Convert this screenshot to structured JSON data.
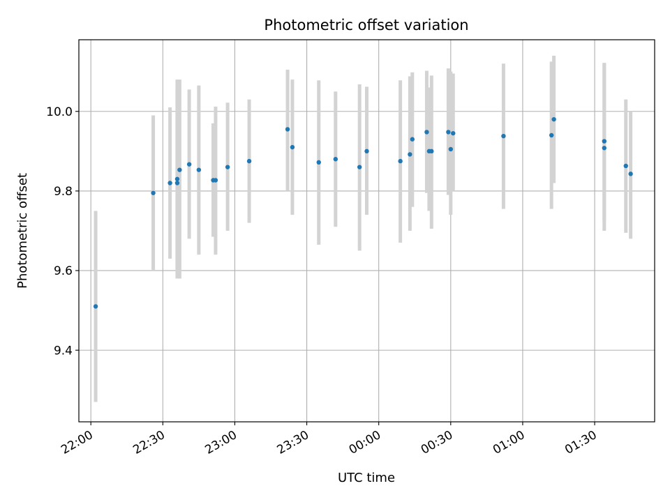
{
  "chart_data": {
    "type": "scatter",
    "title": "Photometric offset variation",
    "xlabel": "UTC time",
    "ylabel": "Photometric offset",
    "xlim": [
      "21:55",
      "01:55"
    ],
    "ylim": [
      9.22,
      10.18
    ],
    "grid": true,
    "x_ticks": [
      "22:00",
      "22:30",
      "23:00",
      "23:30",
      "00:00",
      "00:30",
      "01:00",
      "01:30"
    ],
    "y_ticks": [
      "9.4",
      "9.6",
      "9.8",
      "10.0"
    ],
    "colors": {
      "point": "#1f77b4",
      "errorbar": "#d3d3d3",
      "grid": "#b0b0b0"
    },
    "series": [
      {
        "x": [
          "22:02",
          "22:26",
          "22:33",
          "22:36",
          "22:36",
          "22:37",
          "22:41",
          "22:45",
          "22:51",
          "22:52",
          "22:57",
          "23:06",
          "23:22",
          "23:24",
          "23:35",
          "23:42",
          "23:52",
          "23:55",
          "00:09",
          "00:13",
          "00:14",
          "00:20",
          "00:21",
          "00:22",
          "00:29",
          "00:30",
          "00:31",
          "00:52",
          "01:12",
          "01:13",
          "01:34",
          "01:34",
          "01:43",
          "01:45"
        ],
        "y": [
          9.51,
          9.795,
          9.82,
          9.82,
          9.83,
          9.853,
          9.867,
          9.853,
          9.827,
          9.827,
          9.86,
          9.875,
          9.955,
          9.91,
          9.872,
          9.88,
          9.86,
          9.9,
          9.875,
          9.892,
          9.93,
          9.948,
          9.9,
          9.9,
          9.948,
          9.905,
          9.945,
          9.938,
          9.94,
          9.98,
          9.908,
          9.925,
          9.863,
          9.843
        ],
        "yerr_low": [
          9.27,
          9.6,
          9.63,
          9.6,
          9.58,
          9.58,
          9.68,
          9.64,
          9.685,
          9.64,
          9.7,
          9.72,
          9.8,
          9.74,
          9.665,
          9.71,
          9.65,
          9.74,
          9.67,
          9.7,
          9.76,
          9.795,
          9.75,
          9.705,
          9.79,
          9.74,
          9.8,
          9.755,
          9.755,
          9.82,
          9.7,
          9.725,
          9.695,
          9.68
        ],
        "yerr_high": [
          9.75,
          9.99,
          10.01,
          10.06,
          10.08,
          10.08,
          10.055,
          10.065,
          9.97,
          10.012,
          10.022,
          10.03,
          10.105,
          10.08,
          10.078,
          10.05,
          10.068,
          10.062,
          10.078,
          10.088,
          10.098,
          10.102,
          10.06,
          10.09,
          10.108,
          10.1,
          10.095,
          10.12,
          10.125,
          10.14,
          10.12,
          10.122,
          10.03,
          10.0
        ]
      }
    ]
  }
}
